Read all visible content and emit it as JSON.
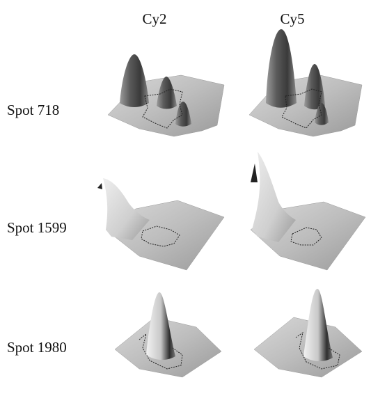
{
  "columns": [
    "Cy2",
    "Cy5"
  ],
  "rows": [
    "Spot 718",
    "Spot 1599",
    "Spot 1980"
  ]
}
